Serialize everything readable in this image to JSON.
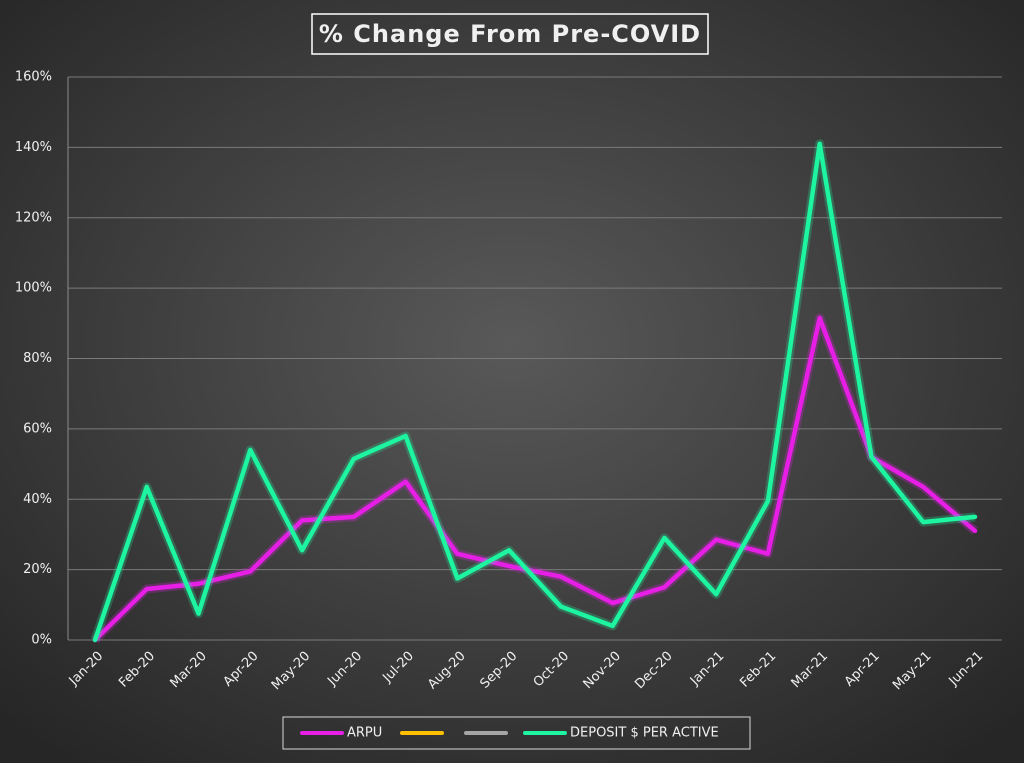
{
  "chart_data": {
    "type": "line",
    "title": "% Change From Pre-COVID",
    "categories": [
      "Jan-20",
      "Feb-20",
      "Mar-20",
      "Apr-20",
      "May-20",
      "Jun-20",
      "Jul-20",
      "Aug-20",
      "Sep-20",
      "Oct-20",
      "Nov-20",
      "Dec-20",
      "Jan-21",
      "Feb-21",
      "Mar-21",
      "Apr-21",
      "May-21",
      "Jun-21"
    ],
    "series": [
      {
        "name": "ARPU",
        "color": "#e61ee6",
        "values": [
          0,
          14.5,
          16,
          19.5,
          34,
          35,
          45,
          24.5,
          21,
          18,
          10.5,
          15,
          28.5,
          24.5,
          91.5,
          52,
          43.5,
          31
        ]
      },
      {
        "color": "#ffc000",
        "values": [
          null,
          null,
          null,
          null,
          null,
          null,
          null,
          null,
          null,
          null,
          null,
          null,
          null,
          null,
          null,
          null,
          null,
          null
        ]
      },
      {
        "color": "#a5a5a5",
        "values": [
          null,
          null,
          null,
          null,
          null,
          null,
          null,
          null,
          null,
          null,
          null,
          null,
          null,
          null,
          null,
          null,
          null,
          null
        ]
      },
      {
        "name": "DEPOSIT $ PER ACTIVE",
        "color": "#1ef5a0",
        "values": [
          0,
          43.5,
          7.5,
          54,
          25.5,
          51.5,
          58,
          17.5,
          25.5,
          9.5,
          4,
          29,
          13,
          39.5,
          141,
          52,
          33.5,
          35
        ]
      }
    ],
    "ylim": [
      0,
      160
    ],
    "yticks": [
      {
        "value": 0,
        "label": "0%"
      },
      {
        "value": 20,
        "label": "20%"
      },
      {
        "value": 40,
        "label": "40%"
      },
      {
        "value": 60,
        "label": "60%"
      },
      {
        "value": 80,
        "label": "80%"
      },
      {
        "value": 100,
        "label": "100%"
      },
      {
        "value": 120,
        "label": "120%"
      },
      {
        "value": 140,
        "label": "140%"
      },
      {
        "value": 160,
        "label": "160%"
      }
    ],
    "grid": true
  }
}
